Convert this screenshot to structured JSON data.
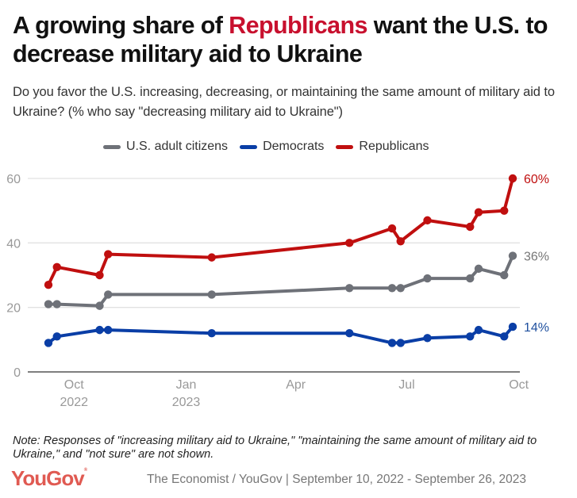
{
  "title": {
    "before": "A growing share of ",
    "highlight": "Republicans",
    "after": " want the U.S. to decrease military aid to Ukraine",
    "highlight_color": "#c8102e"
  },
  "subtitle": "Do you favor the U.S. increasing, decreasing, or maintaining the same amount of military aid to Ukraine? (% who say \"decreasing military aid to Ukraine\")",
  "note": "Note: Responses of \"increasing military aid to Ukraine,\" \"maintaining the same amount of military aid to Ukraine,\" and \"not sure\" are not shown.",
  "logo": "YouGov",
  "source": "The Economist / YouGov | September 10, 2022 - September 26, 2023",
  "chart_data": {
    "type": "line",
    "title": "A growing share of Republicans want the U.S. to decrease military aid to Ukraine",
    "xlabel": "",
    "ylabel": "% who say decreasing military aid to Ukraine",
    "ylim": [
      0,
      60
    ],
    "yticks": [
      0,
      20,
      40,
      60
    ],
    "grid": true,
    "legend_position": "top",
    "x_dates": [
      "2022-09-10",
      "2022-09-17",
      "2022-10-22",
      "2022-10-29",
      "2023-01-22",
      "2023-05-15",
      "2023-06-19",
      "2023-06-26",
      "2023-07-18",
      "2023-08-22",
      "2023-08-29",
      "2023-09-19",
      "2023-09-26"
    ],
    "xlim": [
      "2022-09-03",
      "2023-10-07"
    ],
    "xticks": [
      {
        "date": "2022-10-01",
        "label": "Oct",
        "sublabel": "2022"
      },
      {
        "date": "2023-01-01",
        "label": "Jan",
        "sublabel": "2023"
      },
      {
        "date": "2023-04-01",
        "label": "Apr",
        "sublabel": ""
      },
      {
        "date": "2023-07-01",
        "label": "Jul",
        "sublabel": ""
      },
      {
        "date": "2023-10-01",
        "label": "Oct",
        "sublabel": ""
      }
    ],
    "series": [
      {
        "name": "U.S. adult citizens",
        "key": "adults",
        "color": "#6e7178",
        "end_label": "36%",
        "label_color": "#777777",
        "values": [
          21,
          21,
          20.5,
          24,
          24,
          26,
          26,
          26,
          29,
          29,
          32,
          30,
          36
        ]
      },
      {
        "name": "Democrats",
        "key": "democrats",
        "color": "#0a3ea6",
        "end_label": "14%",
        "label_color": "#1e4f9e",
        "values": [
          9,
          11,
          13,
          13,
          12,
          12,
          9,
          9,
          10.5,
          11,
          13,
          11,
          14
        ]
      },
      {
        "name": "Republicans",
        "key": "republicans",
        "color": "#c00f0f",
        "end_label": "60%",
        "label_color": "#c00f0f",
        "values": [
          27,
          32.5,
          30,
          36.5,
          35.5,
          40,
          44.5,
          40.5,
          47,
          45,
          49.5,
          50,
          60
        ]
      }
    ]
  }
}
